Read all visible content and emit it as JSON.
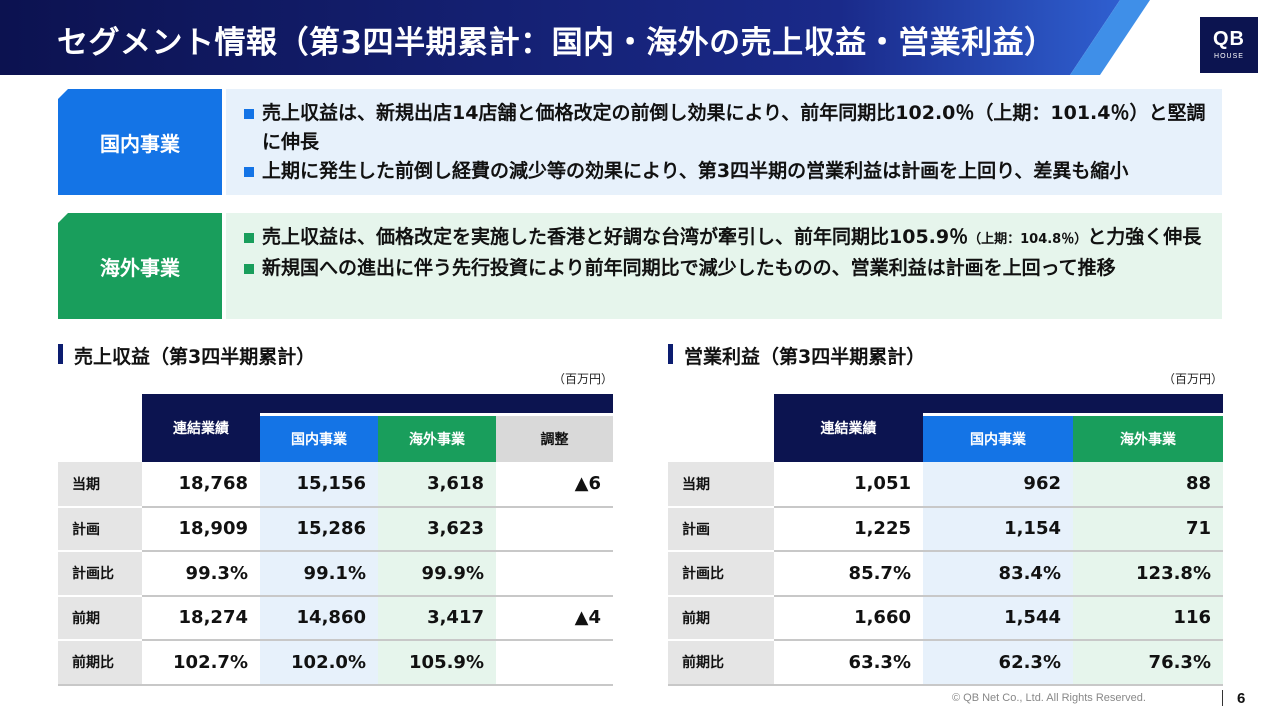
{
  "header": {
    "title": "セグメント情報（第3四半期累計：国内・海外の売上収益・営業利益）",
    "logo_main": "QB",
    "logo_sub": "HOUSE"
  },
  "segments": {
    "domestic": {
      "label": "国内事業",
      "bullets": [
        "売上収益は、新規出店14店舗と価格改定の前倒し効果により、前年同期比102.0％（上期：101.4％）と堅調に伸長",
        "上期に発生した前倒し経費の減少等の効果により、第3四半期の営業利益は計画を上回り、差異も縮小"
      ]
    },
    "overseas": {
      "label": "海外事業",
      "bullet1_main": "売上収益は、価格改定を実施した香港と好調な台湾が牽引し、前年同期比105.9％",
      "bullet1_small": "（上期：104.8％）",
      "bullet1_tail": "と力強く伸長",
      "bullets": [
        "新規国への進出に伴う先行投資により前年同期比で減少したものの、営業利益は計画を上回って推移"
      ]
    }
  },
  "revenue": {
    "title": "売上収益（第3四半期累計）",
    "unit": "（百万円）",
    "headers": {
      "consolidated": "連結業績",
      "domestic": "国内事業",
      "overseas": "海外事業",
      "adjustment": "調整"
    },
    "rows": [
      {
        "label": "当期",
        "consolidated": "18,768",
        "domestic": "15,156",
        "overseas": "3,618",
        "adjustment": "▲6"
      },
      {
        "label": "計画",
        "consolidated": "18,909",
        "domestic": "15,286",
        "overseas": "3,623",
        "adjustment": ""
      },
      {
        "label": "計画比",
        "consolidated": "99.3%",
        "domestic": "99.1%",
        "overseas": "99.9%",
        "adjustment": ""
      },
      {
        "label": "前期",
        "consolidated": "18,274",
        "domestic": "14,860",
        "overseas": "3,417",
        "adjustment": "▲4"
      },
      {
        "label": "前期比",
        "consolidated": "102.7%",
        "domestic": "102.0%",
        "overseas": "105.9%",
        "adjustment": ""
      }
    ]
  },
  "operating_profit": {
    "title": "営業利益（第3四半期累計）",
    "unit": "（百万円）",
    "headers": {
      "consolidated": "連結業績",
      "domestic": "国内事業",
      "overseas": "海外事業"
    },
    "rows": [
      {
        "label": "当期",
        "consolidated": "1,051",
        "domestic": "962",
        "overseas": "88"
      },
      {
        "label": "計画",
        "consolidated": "1,225",
        "domestic": "1,154",
        "overseas": "71"
      },
      {
        "label": "計画比",
        "consolidated": "85.7%",
        "domestic": "83.4%",
        "overseas": "123.8%"
      },
      {
        "label": "前期",
        "consolidated": "1,660",
        "domestic": "1,544",
        "overseas": "116"
      },
      {
        "label": "前期比",
        "consolidated": "63.3%",
        "domestic": "62.3%",
        "overseas": "76.3%"
      }
    ]
  },
  "footer": {
    "copyright": "© QB Net Co., Ltd. All Rights Reserved.",
    "page_number": "6"
  },
  "colors": {
    "navy": "#0c1450",
    "domestic_blue": "#1474e6",
    "overseas_green": "#199e5c",
    "adjustment_gray": "#d9d9d9"
  }
}
